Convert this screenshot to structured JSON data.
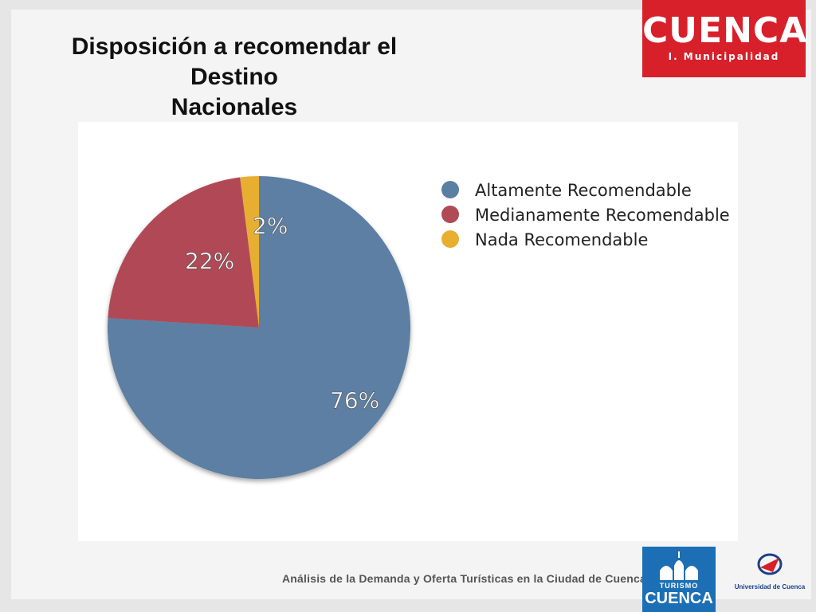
{
  "slide": {
    "title_lines": [
      "Disposición a recomendar el",
      "Destino",
      "Nacionales"
    ],
    "footer_text": "Análisis de la Demanda y Oferta Turísticas en la Ciudad de Cuenca"
  },
  "logos": {
    "municipal_main": "CUENCA",
    "municipal_sub": "I. Municipalidad",
    "turismo_sub": "TURISMO",
    "turismo_main": "CUENCA",
    "university": "Universidad de Cuenca"
  },
  "colors": {
    "municipal_red": "#d7202a",
    "turismo_blue": "#1c6fb5"
  },
  "chart_data": {
    "type": "pie",
    "categories": [
      "Altamente Recomendable",
      "Medianamente Recomendable",
      "Nada Recomendable"
    ],
    "values": [
      76,
      22,
      2
    ],
    "labels": [
      "76%",
      "22%",
      "2%"
    ],
    "colors": [
      "#5b7fa3",
      "#b04a54",
      "#e8ae30"
    ],
    "legend_position": "top-right"
  }
}
